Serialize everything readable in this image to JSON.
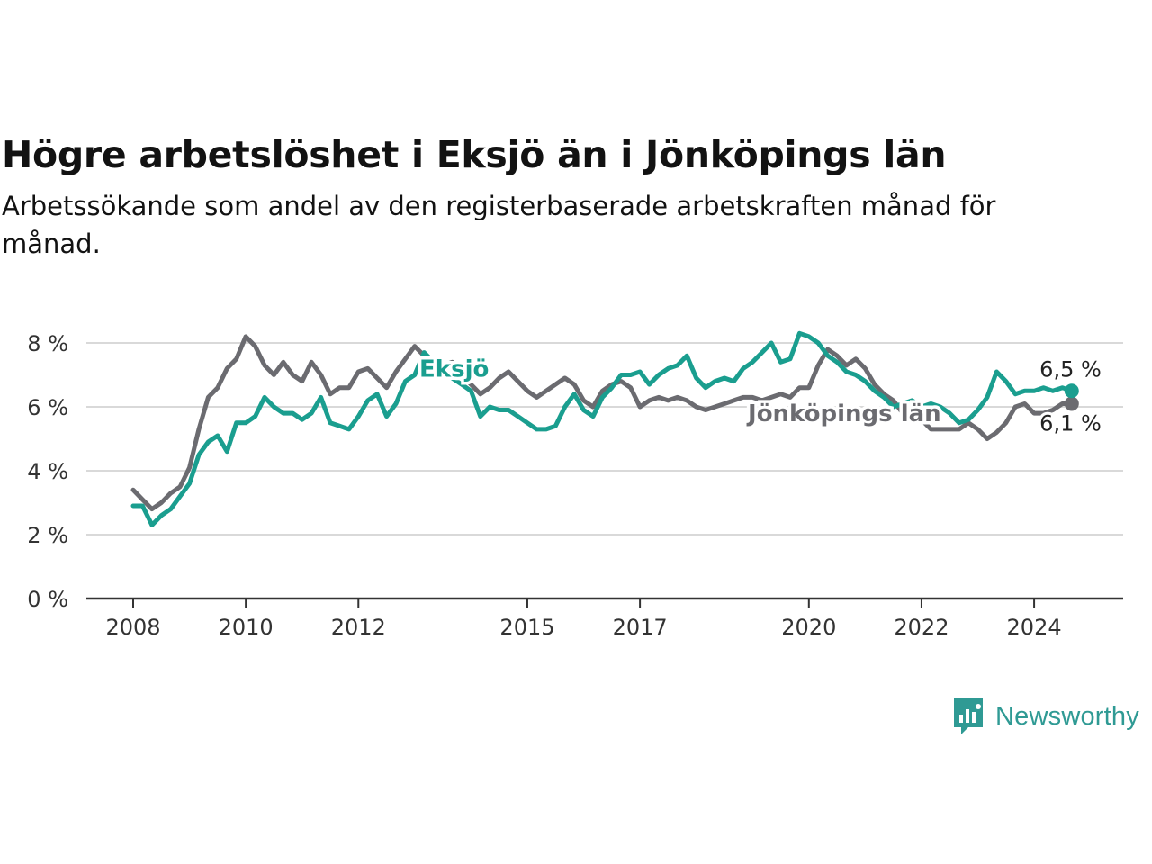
{
  "title": "Högre arbetslöshet i Eksjö än i Jönköpings län",
  "subtitle": "Arbetssökande som andel av den registerbaserade arbetskraften månad för månad.",
  "brand": {
    "name": "Newsworthy",
    "icon": "newsworthy-logo-icon",
    "color": "#2f9a94"
  },
  "chart_data": {
    "type": "line",
    "title": "Högre arbetslöshet i Eksjö än i Jönköpings län",
    "subtitle": "Arbetssökande som andel av den registerbaserade arbetskraften månad för månad.",
    "xlabel": "",
    "ylabel": "",
    "x_ticks": [
      "2008",
      "2010",
      "2012",
      "2015",
      "2017",
      "2020",
      "2022",
      "2024"
    ],
    "y_ticks": [
      "0 %",
      "2 %",
      "4 %",
      "6 %",
      "8 %"
    ],
    "ylim": [
      0,
      9
    ],
    "grid": true,
    "legend": "inline labels",
    "series": [
      {
        "name": "Jönköpings län",
        "color": "#6b6b70",
        "end_label": "6,1 %",
        "points": [
          [
            "2008-01",
            3.4
          ],
          [
            "2008-03",
            3.1
          ],
          [
            "2008-05",
            2.8
          ],
          [
            "2008-07",
            3.0
          ],
          [
            "2008-09",
            3.3
          ],
          [
            "2008-11",
            3.5
          ],
          [
            "2009-01",
            4.1
          ],
          [
            "2009-03",
            5.3
          ],
          [
            "2009-05",
            6.3
          ],
          [
            "2009-07",
            6.6
          ],
          [
            "2009-09",
            7.2
          ],
          [
            "2009-11",
            7.5
          ],
          [
            "2010-01",
            8.2
          ],
          [
            "2010-03",
            7.9
          ],
          [
            "2010-05",
            7.3
          ],
          [
            "2010-07",
            7.0
          ],
          [
            "2010-09",
            7.4
          ],
          [
            "2010-11",
            7.0
          ],
          [
            "2011-01",
            6.8
          ],
          [
            "2011-03",
            7.4
          ],
          [
            "2011-05",
            7.0
          ],
          [
            "2011-07",
            6.4
          ],
          [
            "2011-09",
            6.6
          ],
          [
            "2011-11",
            6.6
          ],
          [
            "2012-01",
            7.1
          ],
          [
            "2012-03",
            7.2
          ],
          [
            "2012-05",
            6.9
          ],
          [
            "2012-07",
            6.6
          ],
          [
            "2012-09",
            7.1
          ],
          [
            "2012-11",
            7.5
          ],
          [
            "2013-01",
            7.9
          ],
          [
            "2013-03",
            7.6
          ],
          [
            "2013-05",
            7.4
          ],
          [
            "2013-07",
            7.3
          ],
          [
            "2013-09",
            7.4
          ],
          [
            "2013-11",
            7.0
          ],
          [
            "2014-01",
            6.7
          ],
          [
            "2014-03",
            6.4
          ],
          [
            "2014-05",
            6.6
          ],
          [
            "2014-07",
            6.9
          ],
          [
            "2014-09",
            7.1
          ],
          [
            "2014-11",
            6.8
          ],
          [
            "2015-01",
            6.5
          ],
          [
            "2015-03",
            6.3
          ],
          [
            "2015-05",
            6.5
          ],
          [
            "2015-07",
            6.7
          ],
          [
            "2015-09",
            6.9
          ],
          [
            "2015-11",
            6.7
          ],
          [
            "2016-01",
            6.2
          ],
          [
            "2016-03",
            6.0
          ],
          [
            "2016-05",
            6.5
          ],
          [
            "2016-07",
            6.7
          ],
          [
            "2016-09",
            6.8
          ],
          [
            "2016-11",
            6.6
          ],
          [
            "2017-01",
            6.0
          ],
          [
            "2017-03",
            6.2
          ],
          [
            "2017-05",
            6.3
          ],
          [
            "2017-07",
            6.2
          ],
          [
            "2017-09",
            6.3
          ],
          [
            "2017-11",
            6.2
          ],
          [
            "2018-01",
            6.0
          ],
          [
            "2018-03",
            5.9
          ],
          [
            "2018-05",
            6.0
          ],
          [
            "2018-07",
            6.1
          ],
          [
            "2018-09",
            6.2
          ],
          [
            "2018-11",
            6.3
          ],
          [
            "2019-01",
            6.3
          ],
          [
            "2019-03",
            6.2
          ],
          [
            "2019-05",
            6.3
          ],
          [
            "2019-07",
            6.4
          ],
          [
            "2019-09",
            6.3
          ],
          [
            "2019-11",
            6.6
          ],
          [
            "2020-01",
            6.6
          ],
          [
            "2020-03",
            7.3
          ],
          [
            "2020-05",
            7.8
          ],
          [
            "2020-07",
            7.6
          ],
          [
            "2020-09",
            7.3
          ],
          [
            "2020-11",
            7.5
          ],
          [
            "2021-01",
            7.2
          ],
          [
            "2021-03",
            6.7
          ],
          [
            "2021-05",
            6.4
          ],
          [
            "2021-07",
            6.2
          ],
          [
            "2021-09",
            5.8
          ],
          [
            "2021-11",
            5.8
          ],
          [
            "2022-01",
            5.6
          ],
          [
            "2022-03",
            5.3
          ],
          [
            "2022-05",
            5.3
          ],
          [
            "2022-07",
            5.3
          ],
          [
            "2022-09",
            5.3
          ],
          [
            "2022-11",
            5.5
          ],
          [
            "2023-01",
            5.3
          ],
          [
            "2023-03",
            5.0
          ],
          [
            "2023-05",
            5.2
          ],
          [
            "2023-07",
            5.5
          ],
          [
            "2023-09",
            6.0
          ],
          [
            "2023-11",
            6.1
          ],
          [
            "2024-01",
            5.8
          ],
          [
            "2024-03",
            5.8
          ],
          [
            "2024-05",
            5.9
          ],
          [
            "2024-07",
            6.1
          ],
          [
            "2024-09",
            6.1
          ]
        ]
      },
      {
        "name": "Eksjö",
        "color": "#1a9e8f",
        "end_label": "6,5 %",
        "points": [
          [
            "2008-01",
            2.9
          ],
          [
            "2008-03",
            2.9
          ],
          [
            "2008-05",
            2.3
          ],
          [
            "2008-07",
            2.6
          ],
          [
            "2008-09",
            2.8
          ],
          [
            "2008-11",
            3.2
          ],
          [
            "2009-01",
            3.6
          ],
          [
            "2009-03",
            4.5
          ],
          [
            "2009-05",
            4.9
          ],
          [
            "2009-07",
            5.1
          ],
          [
            "2009-09",
            4.6
          ],
          [
            "2009-11",
            5.5
          ],
          [
            "2010-01",
            5.5
          ],
          [
            "2010-03",
            5.7
          ],
          [
            "2010-05",
            6.3
          ],
          [
            "2010-07",
            6.0
          ],
          [
            "2010-09",
            5.8
          ],
          [
            "2010-11",
            5.8
          ],
          [
            "2011-01",
            5.6
          ],
          [
            "2011-03",
            5.8
          ],
          [
            "2011-05",
            6.3
          ],
          [
            "2011-07",
            5.5
          ],
          [
            "2011-09",
            5.4
          ],
          [
            "2011-11",
            5.3
          ],
          [
            "2012-01",
            5.7
          ],
          [
            "2012-03",
            6.2
          ],
          [
            "2012-05",
            6.4
          ],
          [
            "2012-07",
            5.7
          ],
          [
            "2012-09",
            6.1
          ],
          [
            "2012-11",
            6.8
          ],
          [
            "2013-01",
            7.0
          ],
          [
            "2013-03",
            7.7
          ],
          [
            "2013-05",
            7.4
          ],
          [
            "2013-07",
            7.1
          ],
          [
            "2013-09",
            6.9
          ],
          [
            "2013-11",
            6.7
          ],
          [
            "2014-01",
            6.5
          ],
          [
            "2014-03",
            5.7
          ],
          [
            "2014-05",
            6.0
          ],
          [
            "2014-07",
            5.9
          ],
          [
            "2014-09",
            5.9
          ],
          [
            "2014-11",
            5.7
          ],
          [
            "2015-01",
            5.5
          ],
          [
            "2015-03",
            5.3
          ],
          [
            "2015-05",
            5.3
          ],
          [
            "2015-07",
            5.4
          ],
          [
            "2015-09",
            6.0
          ],
          [
            "2015-11",
            6.4
          ],
          [
            "2016-01",
            5.9
          ],
          [
            "2016-03",
            5.7
          ],
          [
            "2016-05",
            6.3
          ],
          [
            "2016-07",
            6.6
          ],
          [
            "2016-09",
            7.0
          ],
          [
            "2016-11",
            7.0
          ],
          [
            "2017-01",
            7.1
          ],
          [
            "2017-03",
            6.7
          ],
          [
            "2017-05",
            7.0
          ],
          [
            "2017-07",
            7.2
          ],
          [
            "2017-09",
            7.3
          ],
          [
            "2017-11",
            7.6
          ],
          [
            "2018-01",
            6.9
          ],
          [
            "2018-03",
            6.6
          ],
          [
            "2018-05",
            6.8
          ],
          [
            "2018-07",
            6.9
          ],
          [
            "2018-09",
            6.8
          ],
          [
            "2018-11",
            7.2
          ],
          [
            "2019-01",
            7.4
          ],
          [
            "2019-03",
            7.7
          ],
          [
            "2019-05",
            8.0
          ],
          [
            "2019-07",
            7.4
          ],
          [
            "2019-09",
            7.5
          ],
          [
            "2019-11",
            8.3
          ],
          [
            "2020-01",
            8.2
          ],
          [
            "2020-03",
            8.0
          ],
          [
            "2020-05",
            7.6
          ],
          [
            "2020-07",
            7.4
          ],
          [
            "2020-09",
            7.1
          ],
          [
            "2020-11",
            7.0
          ],
          [
            "2021-01",
            6.8
          ],
          [
            "2021-03",
            6.5
          ],
          [
            "2021-05",
            6.3
          ],
          [
            "2021-07",
            6.0
          ],
          [
            "2021-09",
            6.1
          ],
          [
            "2021-11",
            6.2
          ],
          [
            "2022-01",
            6.0
          ],
          [
            "2022-03",
            6.1
          ],
          [
            "2022-05",
            6.0
          ],
          [
            "2022-07",
            5.8
          ],
          [
            "2022-09",
            5.5
          ],
          [
            "2022-11",
            5.6
          ],
          [
            "2023-01",
            5.9
          ],
          [
            "2023-03",
            6.3
          ],
          [
            "2023-05",
            7.1
          ],
          [
            "2023-07",
            6.8
          ],
          [
            "2023-09",
            6.4
          ],
          [
            "2023-11",
            6.5
          ],
          [
            "2024-01",
            6.5
          ],
          [
            "2024-03",
            6.6
          ],
          [
            "2024-05",
            6.5
          ],
          [
            "2024-07",
            6.6
          ],
          [
            "2024-09",
            6.5
          ]
        ]
      }
    ],
    "annotations": [
      {
        "text": "Eksjö",
        "series": "Eksjö",
        "x": "2013-02",
        "y": 7.2,
        "color": "#1a9e8f"
      },
      {
        "text": "Jönköpings län",
        "series": "Jönköpings län",
        "x": "2018-12",
        "y": 5.8,
        "color": "#6b6b70"
      }
    ]
  }
}
